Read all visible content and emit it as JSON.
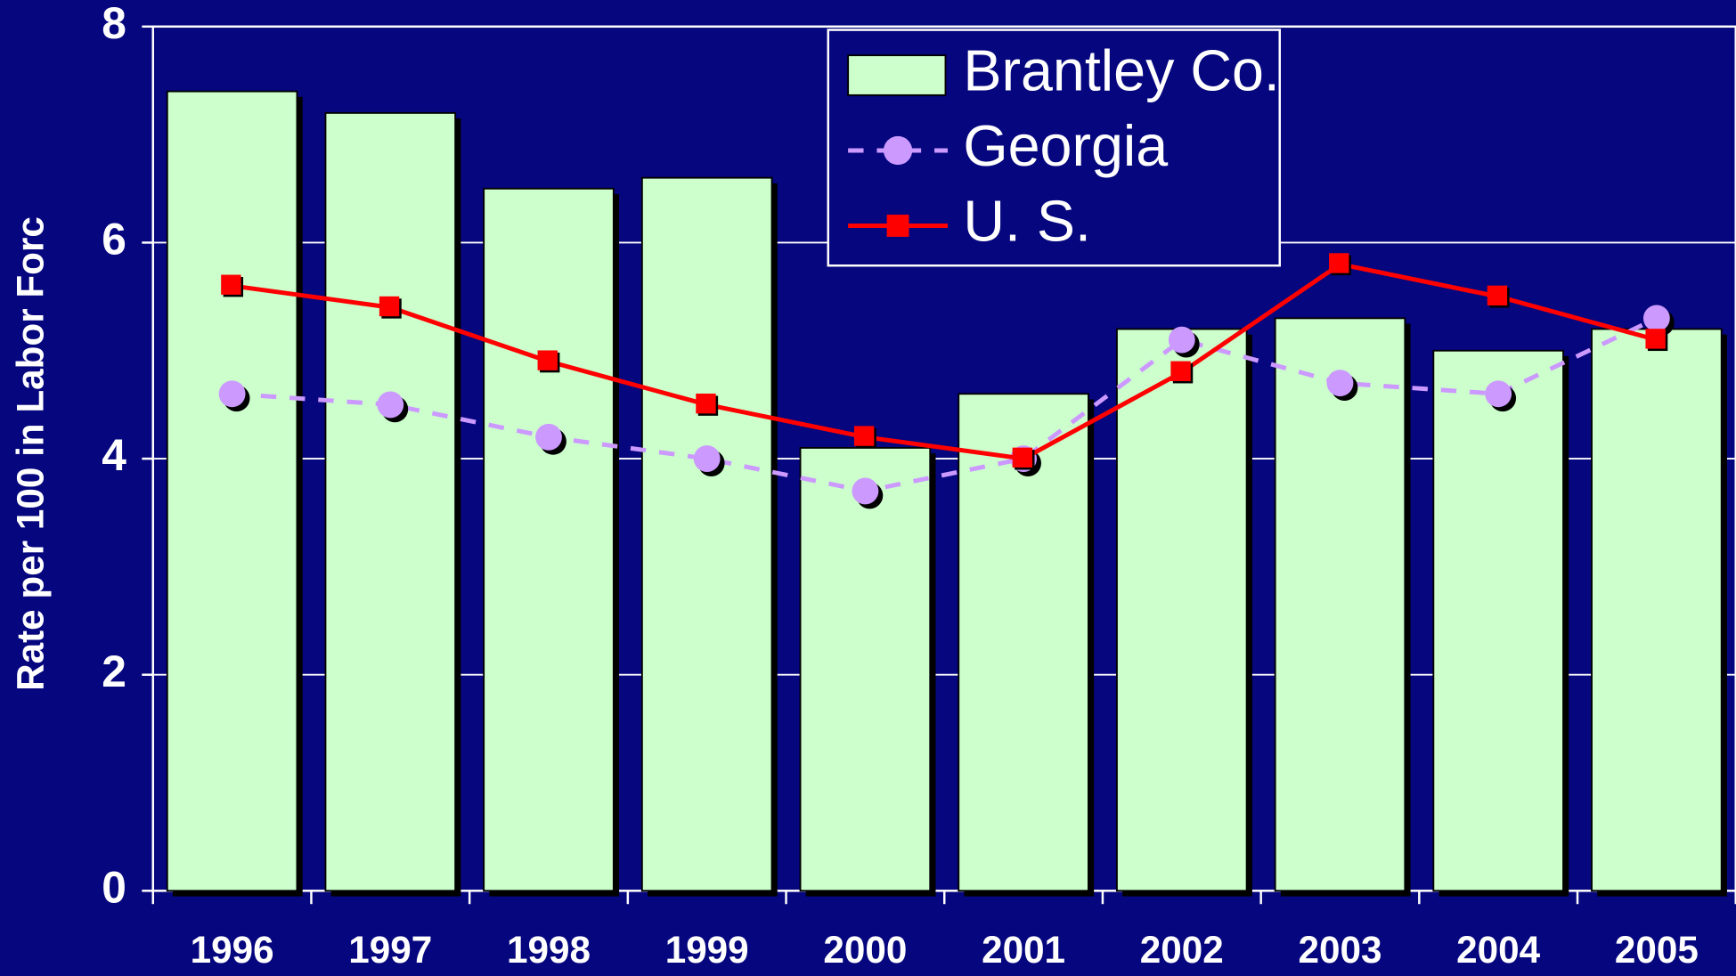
{
  "chart_data": {
    "type": "bar-line",
    "y_label": "Rate per 100 in Labor Forc",
    "categories": [
      "1996",
      "1997",
      "1998",
      "1999",
      "2000",
      "2001",
      "2002",
      "2003",
      "2004",
      "2005"
    ],
    "series": [
      {
        "name": "Brantley Co.",
        "type": "bar",
        "color": "#ccffcc",
        "values": [
          7.4,
          7.2,
          6.5,
          6.6,
          4.1,
          4.6,
          5.2,
          5.3,
          5.0,
          5.2
        ]
      },
      {
        "name": "Georgia",
        "type": "line",
        "color": "#cc99ff",
        "dashed": true,
        "marker": "circle",
        "values": [
          4.6,
          4.5,
          4.2,
          4.0,
          3.7,
          4.0,
          5.1,
          4.7,
          4.6,
          5.3
        ]
      },
      {
        "name": "U. S.",
        "type": "line",
        "color": "#ff0000",
        "dashed": false,
        "marker": "square",
        "values": [
          5.6,
          5.4,
          4.9,
          4.5,
          4.2,
          4.0,
          4.8,
          5.8,
          5.5,
          5.1
        ]
      }
    ],
    "ylim": [
      0,
      8
    ],
    "yticks": [
      0,
      2,
      4,
      6,
      8
    ],
    "grid": true
  }
}
